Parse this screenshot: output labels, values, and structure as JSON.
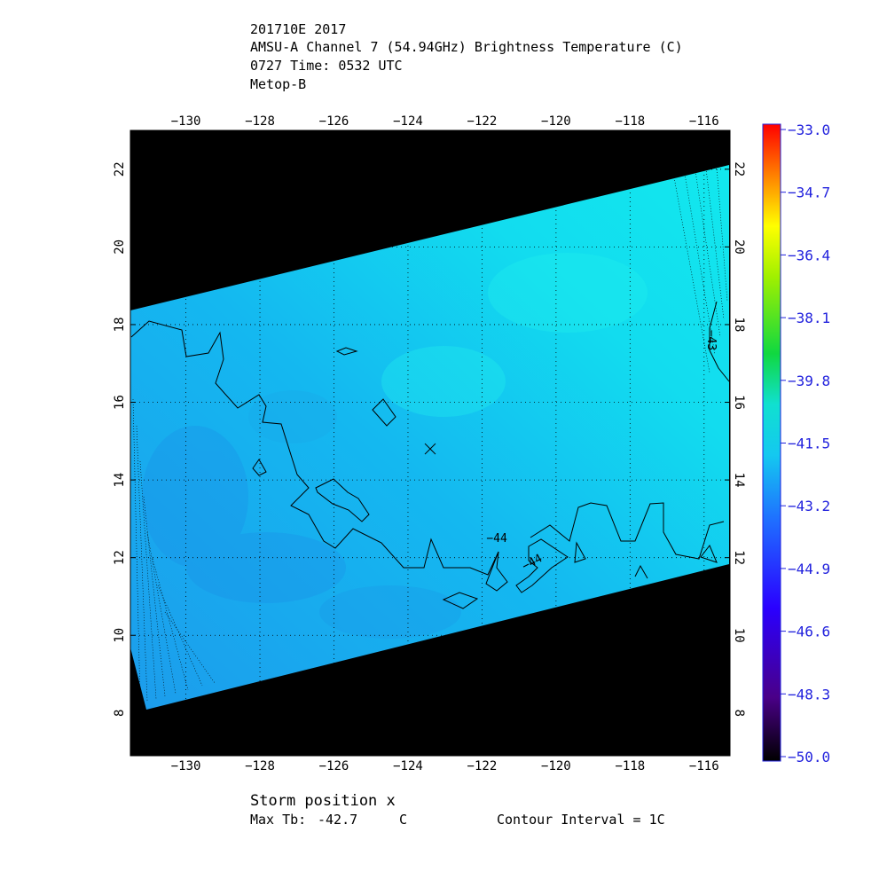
{
  "title": {
    "line1": "201710E 2017",
    "line2": "AMSU-A Channel 7 (54.94GHz) Brightness Temperature (C)",
    "line3": "0727 Time: 0532 UTC",
    "line4": "Metop-B"
  },
  "map": {
    "lon_ticks": [
      -130,
      -128,
      -126,
      -124,
      -122,
      -120,
      -118,
      -116
    ],
    "lat_ticks": [
      8,
      10,
      12,
      14,
      16,
      18,
      20,
      22
    ],
    "lon_range": [
      -131.5,
      -115.3
    ],
    "lat_range": [
      6.9,
      23.0
    ],
    "storm_position": {
      "lon": -123.4,
      "lat": 14.8,
      "marker": "x"
    },
    "contour_labels": [
      {
        "text": "-44",
        "lon": -121.6,
        "lat": 12.4
      },
      {
        "text": "-44",
        "lon": -120.6,
        "lat": 11.8
      },
      {
        "text": "-43",
        "lon": -115.9,
        "lat": 17.6
      }
    ],
    "colors": {
      "swath_fill": "#13c8f0",
      "swath_cool": "#1fa0ee",
      "swath_warm": "#14e3ee",
      "background": "#000000",
      "contour": "#000000"
    }
  },
  "colorbar": {
    "labels": [
      "-33.0",
      "-34.7",
      "-36.4",
      "-38.1",
      "-39.8",
      "-41.5",
      "-43.2",
      "-44.9",
      "-46.6",
      "-48.3",
      "-50.0"
    ],
    "label_color": "#2222dd"
  },
  "footer": {
    "storm_position": "Storm position x",
    "max_tb_label": "Max Tb:",
    "max_tb_value": "-42.7",
    "max_tb_unit": "C",
    "contour_interval": "Contour Interval = 1C"
  }
}
